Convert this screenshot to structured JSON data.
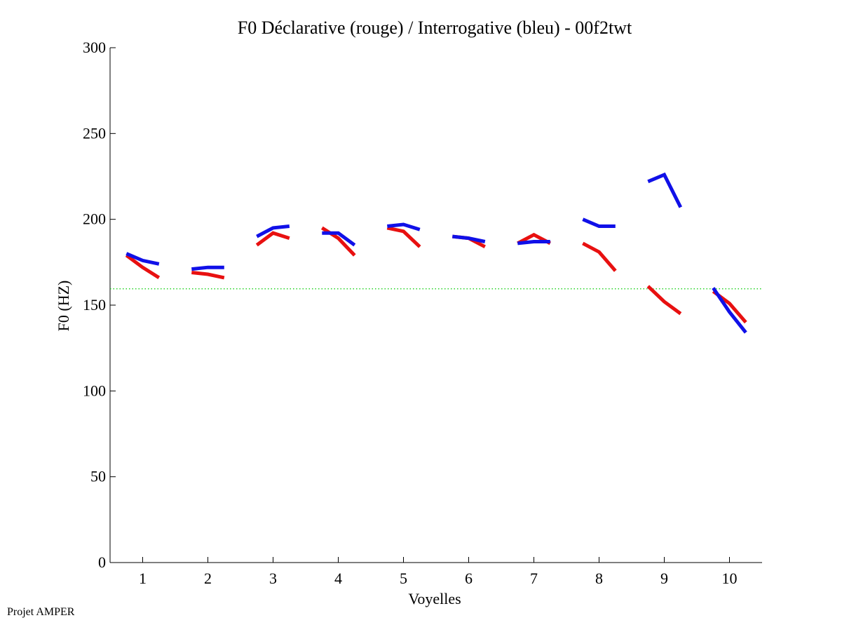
{
  "chart_data": {
    "type": "line",
    "title": "F0 Déclarative (rouge) / Interrogative (bleu) - 00f2twt",
    "xlabel": "Voyelles",
    "ylabel": "F0 (HZ)",
    "xlim": [
      0.5,
      10.5
    ],
    "ylim": [
      0,
      300
    ],
    "xticks": [
      1,
      2,
      3,
      4,
      5,
      6,
      7,
      8,
      9,
      10
    ],
    "yticks": [
      0,
      50,
      100,
      150,
      200,
      250,
      300
    ],
    "reference_line": {
      "y": 159.5,
      "style": "dotted",
      "color": "#00cc00"
    },
    "series": [
      {
        "name": "Déclarative (rouge)",
        "color": "#e81010",
        "segments": [
          {
            "vowel": 1,
            "x": [
              0.75,
              1.0,
              1.25
            ],
            "y": [
              179,
              172,
              166
            ]
          },
          {
            "vowel": 2,
            "x": [
              1.75,
              2.0,
              2.25
            ],
            "y": [
              169,
              168,
              166
            ]
          },
          {
            "vowel": 3,
            "x": [
              2.75,
              3.0,
              3.25
            ],
            "y": [
              185,
              192,
              189
            ]
          },
          {
            "vowel": 4,
            "x": [
              3.75,
              4.0,
              4.25
            ],
            "y": [
              195,
              189,
              179
            ]
          },
          {
            "vowel": 5,
            "x": [
              4.75,
              5.0,
              5.25
            ],
            "y": [
              195,
              193,
              184
            ]
          },
          {
            "vowel": 6,
            "x": [
              5.75,
              6.0,
              6.25
            ],
            "y": [
              190,
              189,
              184
            ]
          },
          {
            "vowel": 7,
            "x": [
              6.75,
              7.0,
              7.25
            ],
            "y": [
              186,
              191,
              186
            ]
          },
          {
            "vowel": 8,
            "x": [
              7.75,
              8.0,
              8.25
            ],
            "y": [
              186,
              181,
              170
            ]
          },
          {
            "vowel": 9,
            "x": [
              8.75,
              9.0,
              9.25
            ],
            "y": [
              161,
              152,
              145
            ]
          },
          {
            "vowel": 10,
            "x": [
              9.75,
              10.0,
              10.25
            ],
            "y": [
              158,
              151,
              140
            ]
          }
        ]
      },
      {
        "name": "Interrogative (bleu)",
        "color": "#1010e8",
        "segments": [
          {
            "vowel": 1,
            "x": [
              0.75,
              1.0,
              1.25
            ],
            "y": [
              180,
              176,
              174
            ]
          },
          {
            "vowel": 2,
            "x": [
              1.75,
              2.0,
              2.25
            ],
            "y": [
              171,
              172,
              172
            ]
          },
          {
            "vowel": 3,
            "x": [
              2.75,
              3.0,
              3.25
            ],
            "y": [
              190,
              195,
              196
            ]
          },
          {
            "vowel": 4,
            "x": [
              3.75,
              4.0,
              4.25
            ],
            "y": [
              192,
              192,
              185
            ]
          },
          {
            "vowel": 5,
            "x": [
              4.75,
              5.0,
              5.25
            ],
            "y": [
              196,
              197,
              194
            ]
          },
          {
            "vowel": 6,
            "x": [
              5.75,
              6.0,
              6.25
            ],
            "y": [
              190,
              189,
              187
            ]
          },
          {
            "vowel": 7,
            "x": [
              6.75,
              7.0,
              7.25
            ],
            "y": [
              186,
              187,
              187
            ]
          },
          {
            "vowel": 8,
            "x": [
              7.75,
              8.0,
              8.25
            ],
            "y": [
              200,
              196,
              196
            ]
          },
          {
            "vowel": 9,
            "x": [
              8.75,
              9.0,
              9.25
            ],
            "y": [
              222,
              226,
              207
            ]
          },
          {
            "vowel": 10,
            "x": [
              9.75,
              10.0,
              10.25
            ],
            "y": [
              160,
              146,
              134
            ]
          }
        ]
      }
    ]
  },
  "footer": {
    "text": "Projet AMPER"
  }
}
